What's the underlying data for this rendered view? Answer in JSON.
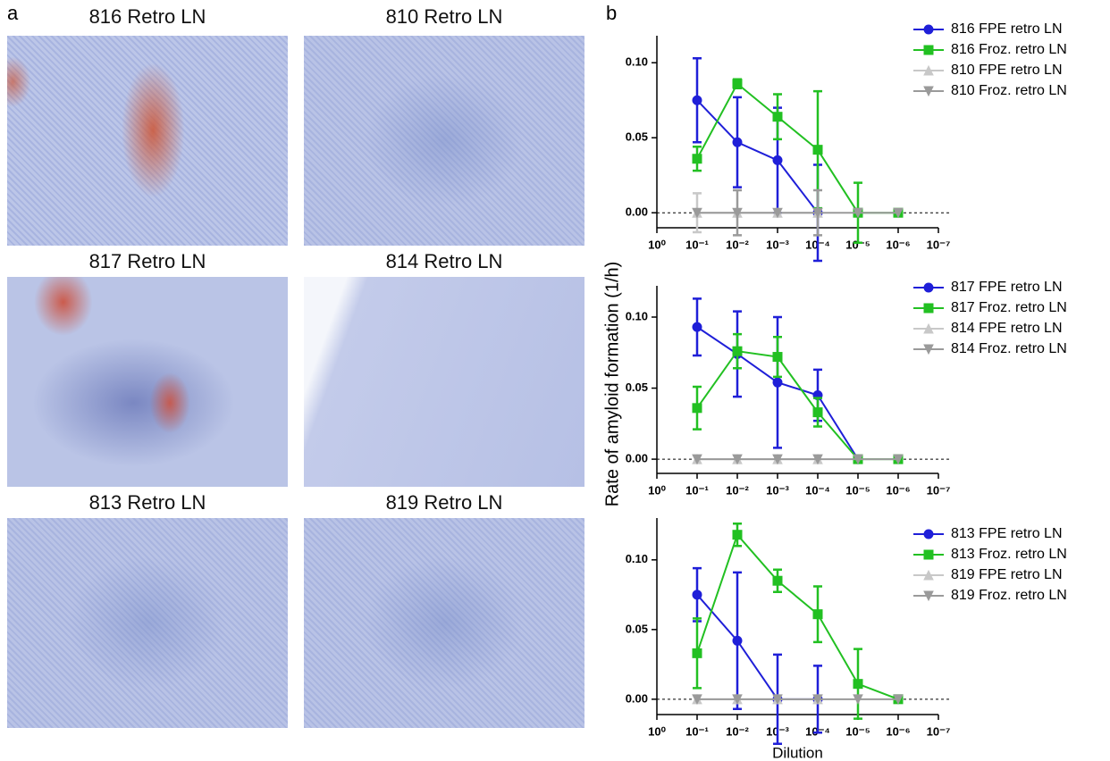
{
  "panel_labels": [
    "a",
    "b"
  ],
  "images": [
    {
      "title": "816 Retro LN"
    },
    {
      "title": "810 Retro LN"
    },
    {
      "title": "817 Retro LN"
    },
    {
      "title": "814 Retro LN"
    },
    {
      "title": "813 Retro LN"
    },
    {
      "title": "819 Retro LN"
    }
  ],
  "y_label": "Rate of amyloid formation (1/h)",
  "chart_data": [
    {
      "type": "line",
      "xscale": "log",
      "x": [
        0.1,
        0.01,
        0.001,
        0.0001,
        1e-05,
        1e-06
      ],
      "xlim": [
        1,
        1e-07
      ],
      "xticks": [
        {
          "value": 1,
          "label": "10⁰"
        },
        {
          "value": 0.1,
          "label": "10⁻¹"
        },
        {
          "value": 0.01,
          "label": "10⁻²"
        },
        {
          "value": 0.001,
          "label": "10⁻³"
        },
        {
          "value": 0.0001,
          "label": "10⁻⁴"
        },
        {
          "value": 1e-05,
          "label": "10⁻⁵"
        },
        {
          "value": 1e-06,
          "label": "10⁻⁶"
        },
        {
          "value": 1e-07,
          "label": "10⁻⁷"
        }
      ],
      "ylim": [
        -0.01,
        0.118
      ],
      "yticks": [
        {
          "value": 0,
          "label": "0.00"
        },
        {
          "value": 0.05,
          "label": "0.05"
        },
        {
          "value": 0.1,
          "label": "0.10"
        }
      ],
      "series": [
        {
          "name": "816 FPE retro LN",
          "color": "#1f1fd8",
          "marker": "circle",
          "values": [
            0.075,
            0.047,
            0.035,
            0,
            null,
            null
          ],
          "errors": [
            0.028,
            0.03,
            0.035,
            0.032,
            null,
            null
          ]
        },
        {
          "name": "816 Froz. retro LN",
          "color": "#22c022",
          "marker": "square",
          "values": [
            0.036,
            0.086,
            0.064,
            0.042,
            0,
            0
          ],
          "errors": [
            0.008,
            0.003,
            0.015,
            0.039,
            0.02,
            0
          ]
        },
        {
          "name": "810 FPE retro LN",
          "color": "#c8c8c8",
          "marker": "triangle-up",
          "values": [
            0,
            0,
            0,
            0,
            null,
            null
          ],
          "errors": [
            0.013,
            0,
            0,
            0,
            null,
            null
          ]
        },
        {
          "name": "810 Froz. retro LN",
          "color": "#9a9a9a",
          "marker": "triangle-down",
          "values": [
            0,
            0,
            0,
            0,
            0,
            0
          ],
          "errors": [
            0,
            0.015,
            0,
            0.015,
            0,
            0
          ]
        }
      ]
    },
    {
      "type": "line",
      "xscale": "log",
      "x": [
        0.1,
        0.01,
        0.001,
        0.0001,
        1e-05,
        1e-06
      ],
      "xlim": [
        1,
        1e-07
      ],
      "xticks": [
        {
          "value": 1,
          "label": "10⁰"
        },
        {
          "value": 0.1,
          "label": "10⁻¹"
        },
        {
          "value": 0.01,
          "label": "10⁻²"
        },
        {
          "value": 0.001,
          "label": "10⁻³"
        },
        {
          "value": 0.0001,
          "label": "10⁻⁴"
        },
        {
          "value": 1e-05,
          "label": "10⁻⁵"
        },
        {
          "value": 1e-06,
          "label": "10⁻⁶"
        },
        {
          "value": 1e-07,
          "label": "10⁻⁷"
        }
      ],
      "ylim": [
        -0.01,
        0.122
      ],
      "yticks": [
        {
          "value": 0,
          "label": "0.00"
        },
        {
          "value": 0.05,
          "label": "0.05"
        },
        {
          "value": 0.1,
          "label": "0.10"
        }
      ],
      "series": [
        {
          "name": "817 FPE retro LN",
          "color": "#1f1fd8",
          "marker": "circle",
          "values": [
            0.093,
            0.074,
            0.054,
            0.045,
            0,
            null
          ],
          "errors": [
            0.02,
            0.03,
            0.046,
            0.018,
            0,
            null
          ]
        },
        {
          "name": "817 Froz. retro LN",
          "color": "#22c022",
          "marker": "square",
          "values": [
            0.036,
            0.076,
            0.072,
            0.033,
            0,
            0
          ],
          "errors": [
            0.015,
            0.012,
            0.014,
            0.01,
            0,
            0
          ]
        },
        {
          "name": "814 FPE retro LN",
          "color": "#c8c8c8",
          "marker": "triangle-up",
          "values": [
            0,
            0,
            0,
            0,
            null,
            null
          ],
          "errors": [
            0,
            0,
            0,
            0,
            null,
            null
          ]
        },
        {
          "name": "814 Froz. retro LN",
          "color": "#9a9a9a",
          "marker": "triangle-down",
          "values": [
            0,
            0,
            0,
            0,
            0,
            0
          ],
          "errors": [
            0,
            0,
            0,
            0,
            0,
            0
          ]
        }
      ]
    },
    {
      "type": "line",
      "xscale": "log",
      "x": [
        0.1,
        0.01,
        0.001,
        0.0001,
        1e-05,
        1e-06
      ],
      "xlim": [
        1,
        1e-07
      ],
      "xticks": [
        {
          "value": 1,
          "label": "10⁰"
        },
        {
          "value": 0.1,
          "label": "10⁻¹"
        },
        {
          "value": 0.01,
          "label": "10⁻²"
        },
        {
          "value": 0.001,
          "label": "10⁻³"
        },
        {
          "value": 0.0001,
          "label": "10⁻⁴"
        },
        {
          "value": 1e-05,
          "label": "10⁻⁵"
        },
        {
          "value": 1e-06,
          "label": "10⁻⁶"
        },
        {
          "value": 1e-07,
          "label": "10⁻⁷"
        }
      ],
      "ylim": [
        -0.011,
        0.13
      ],
      "yticks": [
        {
          "value": 0,
          "label": "0.00"
        },
        {
          "value": 0.05,
          "label": "0.05"
        },
        {
          "value": 0.1,
          "label": "0.10"
        }
      ],
      "x_label": "Dilution",
      "series": [
        {
          "name": "813 FPE retro LN",
          "color": "#1f1fd8",
          "marker": "circle",
          "values": [
            0.075,
            0.042,
            0,
            0,
            null,
            null
          ],
          "errors": [
            0.019,
            0.049,
            0.032,
            0.024,
            null,
            null
          ]
        },
        {
          "name": "813 Froz. retro LN",
          "color": "#22c022",
          "marker": "square",
          "values": [
            0.033,
            0.118,
            0.085,
            0.061,
            0.011,
            0
          ],
          "errors": [
            0.025,
            0.008,
            0.008,
            0.02,
            0.025,
            0
          ]
        },
        {
          "name": "819 FPE retro LN",
          "color": "#c8c8c8",
          "marker": "triangle-up",
          "values": [
            0,
            0,
            0,
            0,
            null,
            null
          ],
          "errors": [
            0,
            0,
            0,
            0,
            null,
            null
          ]
        },
        {
          "name": "819 Froz. retro LN",
          "color": "#9a9a9a",
          "marker": "triangle-down",
          "values": [
            0,
            0,
            0,
            0,
            0,
            0
          ],
          "errors": [
            0,
            0,
            0,
            0,
            0,
            0
          ]
        }
      ]
    }
  ]
}
